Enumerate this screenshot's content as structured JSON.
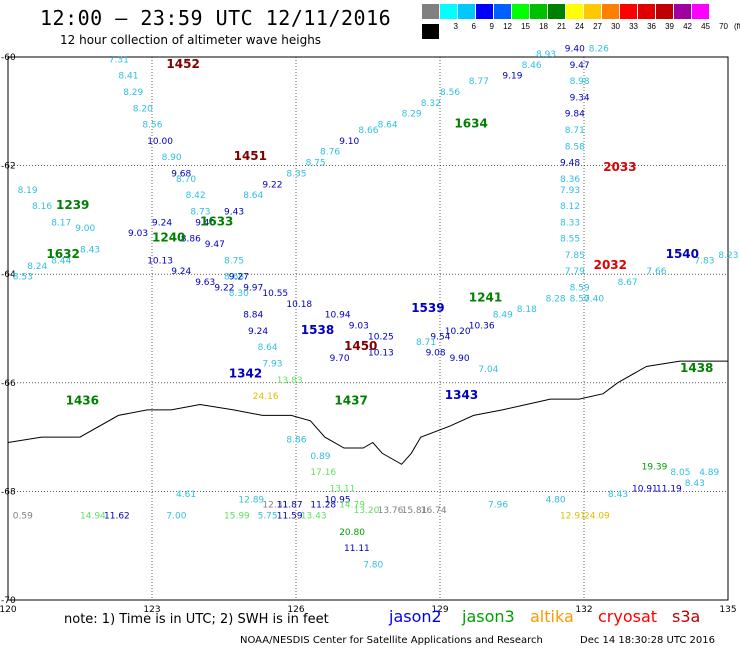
{
  "header": {
    "title": "12:00 — 23:59 UTC 12/11/2016",
    "subtitle": "12 hour collection of altimeter wave heighs"
  },
  "legend": {
    "unit": "(ft)",
    "bins": [
      {
        "label": "",
        "color": "#808080"
      },
      {
        "label": "3",
        "color": "#00ffff"
      },
      {
        "label": "6",
        "color": "#00c8ff"
      },
      {
        "label": "9",
        "color": "#0000ff"
      },
      {
        "label": "12",
        "color": "#0060ff"
      },
      {
        "label": "15",
        "color": "#00ff00"
      },
      {
        "label": "18",
        "color": "#00c000"
      },
      {
        "label": "21",
        "color": "#008000"
      },
      {
        "label": "24",
        "color": "#ffff00"
      },
      {
        "label": "27",
        "color": "#ffc800"
      },
      {
        "label": "30",
        "color": "#ff8000"
      },
      {
        "label": "33",
        "color": "#ff0000"
      },
      {
        "label": "36",
        "color": "#e00000"
      },
      {
        "label": "39",
        "color": "#c00000"
      },
      {
        "label": "42",
        "color": "#a000a0"
      },
      {
        "label": "45",
        "color": "#ff00ff"
      },
      {
        "label": "70",
        "color": "#ffffff"
      },
      {
        "label": "",
        "color": "#000000"
      }
    ]
  },
  "axes": {
    "lon_labels": [
      "120",
      "123",
      "126",
      "129",
      "132",
      "135"
    ],
    "lat_labels": [
      "-60",
      "-62",
      "-64",
      "-66",
      "-68",
      "-70"
    ]
  },
  "passes": [
    {
      "time": "1452",
      "color": "#800000",
      "lon": 123.3,
      "lat": -60.2
    },
    {
      "time": "1451",
      "color": "#800000",
      "lon": 124.7,
      "lat": -61.9
    },
    {
      "time": "1239",
      "color": "#008000",
      "lon": 121.0,
      "lat": -62.8
    },
    {
      "time": "1633",
      "color": "#008000",
      "lon": 124.0,
      "lat": -63.1
    },
    {
      "time": "1240",
      "color": "#008000",
      "lon": 123.0,
      "lat": -63.4
    },
    {
      "time": "1632",
      "color": "#008000",
      "lon": 120.8,
      "lat": -63.7
    },
    {
      "time": "1634",
      "color": "#008000",
      "lon": 129.3,
      "lat": -61.3
    },
    {
      "time": "2033",
      "color": "#e00000",
      "lon": 132.4,
      "lat": -62.1
    },
    {
      "time": "2032",
      "color": "#e00000",
      "lon": 132.2,
      "lat": -63.9
    },
    {
      "time": "1540",
      "color": "#0000c0",
      "lon": 133.7,
      "lat": -63.7
    },
    {
      "time": "1538",
      "color": "#0000c0",
      "lon": 126.1,
      "lat": -65.1
    },
    {
      "time": "1539",
      "color": "#0000c0",
      "lon": 128.4,
      "lat": -64.7
    },
    {
      "time": "1241",
      "color": "#008000",
      "lon": 129.6,
      "lat": -64.5
    },
    {
      "time": "1450",
      "color": "#800000",
      "lon": 127.0,
      "lat": -65.4
    },
    {
      "time": "1342",
      "color": "#0000c0",
      "lon": 124.6,
      "lat": -65.9
    },
    {
      "time": "1343",
      "color": "#0000c0",
      "lon": 129.1,
      "lat": -66.3
    },
    {
      "time": "1436",
      "color": "#008000",
      "lon": 121.2,
      "lat": -66.4
    },
    {
      "time": "1437",
      "color": "#008000",
      "lon": 126.8,
      "lat": -66.4
    },
    {
      "time": "1438",
      "color": "#008000",
      "lon": 134.0,
      "lat": -65.8
    }
  ],
  "obs": [
    {
      "v": "7.31",
      "c": "#30c0e0",
      "lon": 122.1,
      "lat": -60.1
    },
    {
      "v": "8.41",
      "c": "#30c0e0",
      "lon": 122.3,
      "lat": -60.4
    },
    {
      "v": "8.29",
      "c": "#30c0e0",
      "lon": 122.4,
      "lat": -60.7
    },
    {
      "v": "8.20",
      "c": "#30c0e0",
      "lon": 122.6,
      "lat": -61.0
    },
    {
      "v": "8.56",
      "c": "#30c0e0",
      "lon": 122.8,
      "lat": -61.3
    },
    {
      "v": "10.00",
      "c": "#0000c0",
      "lon": 122.9,
      "lat": -61.6
    },
    {
      "v": "8.90",
      "c": "#30c0e0",
      "lon": 123.2,
      "lat": -61.9
    },
    {
      "v": "9.68",
      "c": "#0000c0",
      "lon": 123.4,
      "lat": -62.2
    },
    {
      "v": "8.70",
      "c": "#30c0e0",
      "lon": 123.5,
      "lat": -62.3
    },
    {
      "v": "8.42",
      "c": "#30c0e0",
      "lon": 123.7,
      "lat": -62.6
    },
    {
      "v": "8.73",
      "c": "#30c0e0",
      "lon": 123.8,
      "lat": -62.9
    },
    {
      "v": "9.40",
      "c": "#0000c0",
      "lon": 123.9,
      "lat": -63.1
    },
    {
      "v": "8.86",
      "c": "#0000c0",
      "lon": 123.6,
      "lat": -63.4
    },
    {
      "v": "9.47",
      "c": "#0000c0",
      "lon": 124.1,
      "lat": -63.5
    },
    {
      "v": "8.75",
      "c": "#30c0e0",
      "lon": 124.5,
      "lat": -63.8
    },
    {
      "v": "8.68",
      "c": "#30c0e0",
      "lon": 124.5,
      "lat": -64.1
    },
    {
      "v": "8.30",
      "c": "#30c0e0",
      "lon": 124.6,
      "lat": -64.4
    },
    {
      "v": "8.84",
      "c": "#0000c0",
      "lon": 124.9,
      "lat": -64.8
    },
    {
      "v": "9.24",
      "c": "#0000c0",
      "lon": 125.0,
      "lat": -65.1
    },
    {
      "v": "8.64",
      "c": "#30c0e0",
      "lon": 125.2,
      "lat": -65.4
    },
    {
      "v": "7.93",
      "c": "#30c0e0",
      "lon": 125.3,
      "lat": -65.7
    },
    {
      "v": "13.83",
      "c": "#60e060",
      "lon": 125.6,
      "lat": -66.0
    },
    {
      "v": "24.16",
      "c": "#e0c000",
      "lon": 125.1,
      "lat": -66.3
    },
    {
      "v": "8.19",
      "c": "#30c0e0",
      "lon": 120.2,
      "lat": -62.5
    },
    {
      "v": "8.16",
      "c": "#30c0e0",
      "lon": 120.5,
      "lat": -62.8
    },
    {
      "v": "8.17",
      "c": "#30c0e0",
      "lon": 120.9,
      "lat": -63.1
    },
    {
      "v": "9.00",
      "c": "#30c0e0",
      "lon": 121.4,
      "lat": -63.2
    },
    {
      "v": "8.43",
      "c": "#30c0e0",
      "lon": 121.5,
      "lat": -63.6
    },
    {
      "v": "8.44",
      "c": "#30c0e0",
      "lon": 120.9,
      "lat": -63.8
    },
    {
      "v": "8.24",
      "c": "#30c0e0",
      "lon": 120.4,
      "lat": -63.9
    },
    {
      "v": "8.53",
      "c": "#30c0e0",
      "lon": 120.1,
      "lat": -64.1
    },
    {
      "v": "9.03",
      "c": "#0000c0",
      "lon": 122.5,
      "lat": -63.3
    },
    {
      "v": "9.24",
      "c": "#0000c0",
      "lon": 123.0,
      "lat": -63.1
    },
    {
      "v": "10.13",
      "c": "#0000c0",
      "lon": 122.9,
      "lat": -63.8
    },
    {
      "v": "9.24",
      "c": "#0000c0",
      "lon": 123.4,
      "lat": -64.0
    },
    {
      "v": "9.63",
      "c": "#0000c0",
      "lon": 123.9,
      "lat": -64.2
    },
    {
      "v": "9.22",
      "c": "#0000c0",
      "lon": 124.3,
      "lat": -64.3
    },
    {
      "v": "9.43",
      "c": "#0000c0",
      "lon": 124.5,
      "lat": -62.9
    },
    {
      "v": "8.64",
      "c": "#30c0e0",
      "lon": 124.9,
      "lat": -62.6
    },
    {
      "v": "9.22",
      "c": "#0000c0",
      "lon": 125.3,
      "lat": -62.4
    },
    {
      "v": "8.35",
      "c": "#30c0e0",
      "lon": 125.8,
      "lat": -62.2
    },
    {
      "v": "8.75",
      "c": "#30c0e0",
      "lon": 126.2,
      "lat": -62.0
    },
    {
      "v": "8.76",
      "c": "#30c0e0",
      "lon": 126.5,
      "lat": -61.8
    },
    {
      "v": "9.10",
      "c": "#0000c0",
      "lon": 126.9,
      "lat": -61.6
    },
    {
      "v": "8.66",
      "c": "#30c0e0",
      "lon": 127.3,
      "lat": -61.4
    },
    {
      "v": "8.64",
      "c": "#30c0e0",
      "lon": 127.7,
      "lat": -61.3
    },
    {
      "v": "8.29",
      "c": "#30c0e0",
      "lon": 128.2,
      "lat": -61.1
    },
    {
      "v": "8.32",
      "c": "#30c0e0",
      "lon": 128.6,
      "lat": -60.9
    },
    {
      "v": "8.56",
      "c": "#30c0e0",
      "lon": 129.0,
      "lat": -60.7
    },
    {
      "v": "8.77",
      "c": "#30c0e0",
      "lon": 129.6,
      "lat": -60.5
    },
    {
      "v": "9.19",
      "c": "#0000c0",
      "lon": 130.3,
      "lat": -60.4
    },
    {
      "v": "8.46",
      "c": "#30c0e0",
      "lon": 130.7,
      "lat": -60.2
    },
    {
      "v": "8.93",
      "c": "#30c0e0",
      "lon": 131.0,
      "lat": -60.0
    },
    {
      "v": "9.40",
      "c": "#0000c0",
      "lon": 131.6,
      "lat": -59.9
    },
    {
      "v": "8.26",
      "c": "#30c0e0",
      "lon": 132.1,
      "lat": -59.9
    },
    {
      "v": "9.47",
      "c": "#0000c0",
      "lon": 131.7,
      "lat": -60.2
    },
    {
      "v": "8.98",
      "c": "#30c0e0",
      "lon": 131.7,
      "lat": -60.5
    },
    {
      "v": "9.34",
      "c": "#0000c0",
      "lon": 131.7,
      "lat": -60.8
    },
    {
      "v": "9.84",
      "c": "#0000c0",
      "lon": 131.6,
      "lat": -61.1
    },
    {
      "v": "8.71",
      "c": "#30c0e0",
      "lon": 131.6,
      "lat": -61.4
    },
    {
      "v": "8.58",
      "c": "#30c0e0",
      "lon": 131.6,
      "lat": -61.7
    },
    {
      "v": "9.48",
      "c": "#0000c0",
      "lon": 131.5,
      "lat": -62.0
    },
    {
      "v": "8.36",
      "c": "#30c0e0",
      "lon": 131.5,
      "lat": -62.3
    },
    {
      "v": "7.93",
      "c": "#30c0e0",
      "lon": 131.5,
      "lat": -62.5
    },
    {
      "v": "8.12",
      "c": "#30c0e0",
      "lon": 131.5,
      "lat": -62.8
    },
    {
      "v": "8.33",
      "c": "#30c0e0",
      "lon": 131.5,
      "lat": -63.1
    },
    {
      "v": "8.55",
      "c": "#30c0e0",
      "lon": 131.5,
      "lat": -63.4
    },
    {
      "v": "7.85",
      "c": "#30c0e0",
      "lon": 131.6,
      "lat": -63.7
    },
    {
      "v": "7.79",
      "c": "#30c0e0",
      "lon": 131.6,
      "lat": -64.0
    },
    {
      "v": "8.59",
      "c": "#30c0e0",
      "lon": 131.7,
      "lat": -64.3
    },
    {
      "v": "8.50",
      "c": "#30c0e0",
      "lon": 131.7,
      "lat": -64.5
    },
    {
      "v": "7.40",
      "c": "#30c0e0",
      "lon": 132.0,
      "lat": -64.5
    },
    {
      "v": "8.67",
      "c": "#30c0e0",
      "lon": 132.7,
      "lat": -64.2
    },
    {
      "v": "7.66",
      "c": "#30c0e0",
      "lon": 133.3,
      "lat": -64.0
    },
    {
      "v": "7.83",
      "c": "#30c0e0",
      "lon": 134.3,
      "lat": -63.8
    },
    {
      "v": "8.23",
      "c": "#30c0e0",
      "lon": 134.8,
      "lat": -63.7
    },
    {
      "v": "8.28",
      "c": "#30c0e0",
      "lon": 131.2,
      "lat": -64.5
    },
    {
      "v": "8.18",
      "c": "#30c0e0",
      "lon": 130.6,
      "lat": -64.7
    },
    {
      "v": "8.49",
      "c": "#30c0e0",
      "lon": 130.1,
      "lat": -64.8
    },
    {
      "v": "10.36",
      "c": "#0000c0",
      "lon": 129.6,
      "lat": -65.0
    },
    {
      "v": "10.20",
      "c": "#0000c0",
      "lon": 129.1,
      "lat": -65.1
    },
    {
      "v": "9.54",
      "c": "#0000c0",
      "lon": 128.8,
      "lat": -65.2
    },
    {
      "v": "8.71",
      "c": "#30c0e0",
      "lon": 128.5,
      "lat": -65.3
    },
    {
      "v": "9.08",
      "c": "#0000c0",
      "lon": 128.7,
      "lat": -65.5
    },
    {
      "v": "9.90",
      "c": "#0000c0",
      "lon": 129.2,
      "lat": -65.6
    },
    {
      "v": "7.04",
      "c": "#30c0e0",
      "lon": 129.8,
      "lat": -65.8
    },
    {
      "v": "10.25",
      "c": "#0000c0",
      "lon": 127.5,
      "lat": -65.2
    },
    {
      "v": "10.13",
      "c": "#0000c0",
      "lon": 127.5,
      "lat": -65.5
    },
    {
      "v": "9.70",
      "c": "#0000c0",
      "lon": 126.7,
      "lat": -65.6
    },
    {
      "v": "9.03",
      "c": "#0000c0",
      "lon": 127.1,
      "lat": -65.0
    },
    {
      "v": "10.94",
      "c": "#0000c0",
      "lon": 126.6,
      "lat": -64.8
    },
    {
      "v": "10.18",
      "c": "#0000c0",
      "lon": 125.8,
      "lat": -64.6
    },
    {
      "v": "10.55",
      "c": "#0000c0",
      "lon": 125.3,
      "lat": -64.4
    },
    {
      "v": "9.97",
      "c": "#0000c0",
      "lon": 124.9,
      "lat": -64.3
    },
    {
      "v": "9.27",
      "c": "#0000c0",
      "lon": 124.6,
      "lat": -64.1
    },
    {
      "v": "8.86",
      "c": "#30c0e0",
      "lon": 125.8,
      "lat": -67.1
    },
    {
      "v": "0.89",
      "c": "#30c0e0",
      "lon": 126.3,
      "lat": -67.4
    },
    {
      "v": "17.16",
      "c": "#60e060",
      "lon": 126.3,
      "lat": -67.7
    },
    {
      "v": "13.11",
      "c": "#60e060",
      "lon": 126.7,
      "lat": -68.0
    },
    {
      "v": "4.61",
      "c": "#30c0e0",
      "lon": 123.5,
      "lat": -68.1
    },
    {
      "v": "12.89",
      "c": "#30c0e0",
      "lon": 124.8,
      "lat": -68.2
    },
    {
      "v": "12.31",
      "c": "#808080",
      "lon": 125.3,
      "lat": -68.3
    },
    {
      "v": "11.87",
      "c": "#0000c0",
      "lon": 125.6,
      "lat": -68.3
    },
    {
      "v": "11.28",
      "c": "#0000c0",
      "lon": 126.3,
      "lat": -68.3
    },
    {
      "v": "10.95",
      "c": "#0000c0",
      "lon": 126.6,
      "lat": -68.2
    },
    {
      "v": "14.79",
      "c": "#60e060",
      "lon": 126.9,
      "lat": -68.3
    },
    {
      "v": "13.20",
      "c": "#60e060",
      "lon": 127.2,
      "lat": -68.4
    },
    {
      "v": "13.76",
      "c": "#808080",
      "lon": 127.7,
      "lat": -68.4
    },
    {
      "v": "15.81",
      "c": "#808080",
      "lon": 128.2,
      "lat": -68.4
    },
    {
      "v": "16.74",
      "c": "#808080",
      "lon": 128.6,
      "lat": -68.4
    },
    {
      "v": "7.00",
      "c": "#30c0e0",
      "lon": 123.3,
      "lat": -68.5
    },
    {
      "v": "15.99",
      "c": "#60e060",
      "lon": 124.5,
      "lat": -68.5
    },
    {
      "v": "5.75",
      "c": "#30c0e0",
      "lon": 125.2,
      "lat": -68.5
    },
    {
      "v": "11.59",
      "c": "#0000c0",
      "lon": 125.6,
      "lat": -68.5
    },
    {
      "v": "13.43",
      "c": "#60e060",
      "lon": 126.1,
      "lat": -68.5
    },
    {
      "v": "20.80",
      "c": "#00a000",
      "lon": 126.9,
      "lat": -68.8
    },
    {
      "v": "11.11",
      "c": "#0000c0",
      "lon": 127.0,
      "lat": -69.1
    },
    {
      "v": "7.80",
      "c": "#30c0e0",
      "lon": 127.4,
      "lat": -69.4
    },
    {
      "v": "0.59",
      "c": "#808080",
      "lon": 120.1,
      "lat": -68.5
    },
    {
      "v": "14.94",
      "c": "#60e060",
      "lon": 121.5,
      "lat": -68.5
    },
    {
      "v": "11.62",
      "c": "#0000c0",
      "lon": 122.0,
      "lat": -68.5
    },
    {
      "v": "7.96",
      "c": "#30c0e0",
      "lon": 130.0,
      "lat": -68.3
    },
    {
      "v": "4.80",
      "c": "#30c0e0",
      "lon": 131.2,
      "lat": -68.2
    },
    {
      "v": "12.91",
      "c": "#e0c000",
      "lon": 131.5,
      "lat": -68.5
    },
    {
      "v": "24.09",
      "c": "#e0c000",
      "lon": 132.0,
      "lat": -68.5
    },
    {
      "v": "8.43",
      "c": "#30c0e0",
      "lon": 132.5,
      "lat": -68.1
    },
    {
      "v": "10.91",
      "c": "#0000c0",
      "lon": 133.0,
      "lat": -68.0
    },
    {
      "v": "11.19",
      "c": "#0000c0",
      "lon": 133.5,
      "lat": -68.0
    },
    {
      "v": "19.39",
      "c": "#00a000",
      "lon": 133.2,
      "lat": -67.6
    },
    {
      "v": "8.05",
      "c": "#30c0e0",
      "lon": 133.8,
      "lat": -67.7
    },
    {
      "v": "4.89",
      "c": "#30c0e0",
      "lon": 134.4,
      "lat": -67.7
    },
    {
      "v": "8.43",
      "c": "#30c0e0",
      "lon": 134.1,
      "lat": -67.9
    }
  ],
  "footer": {
    "note": "note: 1) Time is in UTC; 2) SWH is in feet",
    "missions": [
      {
        "name": "jason2",
        "color": "#0000ff"
      },
      {
        "name": "jason3",
        "color": "#00a000"
      },
      {
        "name": "altika",
        "color": "#ff9900"
      },
      {
        "name": "cryosat",
        "color": "#ff0000"
      },
      {
        "name": "s3a",
        "color": "#c00000"
      }
    ],
    "credit": "NOAA/NESDIS Center for Satellite Applications and Research",
    "generated": "Dec 14 18:30:28 UTC 2016"
  }
}
